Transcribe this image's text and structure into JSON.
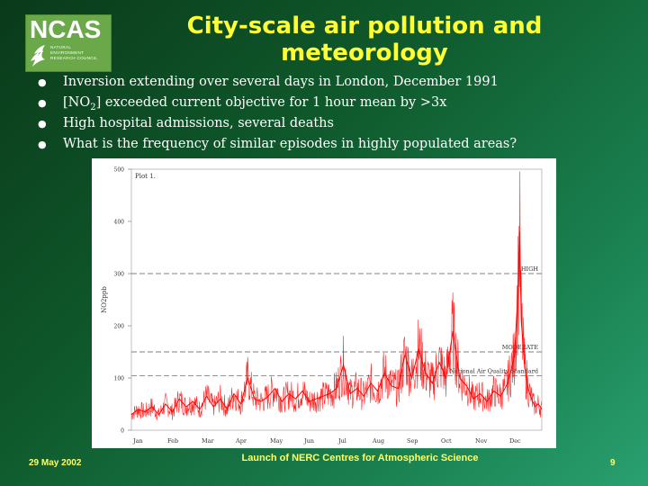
{
  "logo": {
    "wordmark": "NCAS",
    "lines": [
      "NATURAL",
      "ENVIRONMENT",
      "RESEARCH COUNCIL"
    ]
  },
  "title": {
    "line1": "City-scale air pollution and",
    "line2": "meteorology"
  },
  "bullets": [
    {
      "text": "Inversion extending over several days in London, December 1991"
    },
    {
      "pre": "[NO",
      "sub": "2",
      "post": "] exceeded current objective for 1 hour mean by >3x"
    },
    {
      "text": "High hospital admissions, several deaths"
    },
    {
      "text": "What is the frequency of similar episodes in highly populated areas?"
    }
  ],
  "colors": {
    "title": "#ffff33",
    "footer": "#ffff66",
    "series": "#ff0000",
    "reference_lines": "#555555"
  },
  "chart_data": {
    "type": "line",
    "title": "Plot 1.",
    "xlabel": "",
    "ylabel": "NO2ppb",
    "ylim": [
      0,
      500
    ],
    "yticks": [
      0,
      100,
      200,
      300,
      400,
      500
    ],
    "xticks": [
      "Jan",
      "Feb",
      "Mar",
      "Apr",
      "May",
      "Jun",
      "Jul",
      "Aug",
      "Sep",
      "Oct",
      "Nov",
      "Dec"
    ],
    "grid": false,
    "reference_lines": [
      {
        "label": "HIGH",
        "value": 300
      },
      {
        "label": "MODERATE",
        "value": 150
      },
      {
        "label": "National Air Quality Standard",
        "value": 104
      }
    ],
    "series": [
      {
        "name": "",
        "points": [
          [
            0.0,
            30
          ],
          [
            0.2,
            40
          ],
          [
            0.4,
            35
          ],
          [
            0.6,
            45
          ],
          [
            0.8,
            30
          ],
          [
            1.0,
            50
          ],
          [
            1.2,
            35
          ],
          [
            1.4,
            60
          ],
          [
            1.6,
            45
          ],
          [
            1.8,
            55
          ],
          [
            2.0,
            40
          ],
          [
            2.2,
            65
          ],
          [
            2.4,
            45
          ],
          [
            2.6,
            60
          ],
          [
            2.8,
            40
          ],
          [
            3.0,
            70
          ],
          [
            3.2,
            50
          ],
          [
            3.4,
            100
          ],
          [
            3.6,
            60
          ],
          [
            3.8,
            55
          ],
          [
            4.0,
            65
          ],
          [
            4.2,
            80
          ],
          [
            4.4,
            55
          ],
          [
            4.6,
            70
          ],
          [
            4.8,
            60
          ],
          [
            5.0,
            75
          ],
          [
            5.2,
            55
          ],
          [
            5.4,
            60
          ],
          [
            5.6,
            65
          ],
          [
            5.8,
            70
          ],
          [
            6.0,
            80
          ],
          [
            6.2,
            125
          ],
          [
            6.4,
            70
          ],
          [
            6.6,
            80
          ],
          [
            6.8,
            65
          ],
          [
            7.0,
            90
          ],
          [
            7.2,
            75
          ],
          [
            7.4,
            110
          ],
          [
            7.6,
            85
          ],
          [
            7.8,
            80
          ],
          [
            8.0,
            145
          ],
          [
            8.2,
            100
          ],
          [
            8.4,
            155
          ],
          [
            8.6,
            110
          ],
          [
            8.8,
            90
          ],
          [
            9.0,
            130
          ],
          [
            9.2,
            100
          ],
          [
            9.4,
            190
          ],
          [
            9.6,
            100
          ],
          [
            9.8,
            85
          ],
          [
            10.0,
            60
          ],
          [
            10.2,
            70
          ],
          [
            10.4,
            55
          ],
          [
            10.6,
            75
          ],
          [
            10.8,
            65
          ],
          [
            11.0,
            90
          ],
          [
            11.2,
            140
          ],
          [
            11.3,
            260
          ],
          [
            11.35,
            380
          ],
          [
            11.4,
            210
          ],
          [
            11.5,
            120
          ],
          [
            11.6,
            80
          ],
          [
            11.7,
            60
          ],
          [
            11.8,
            45
          ],
          [
            11.9,
            50
          ],
          [
            12.0,
            40
          ]
        ]
      }
    ]
  },
  "footer": {
    "date": "29 May 2002",
    "event": "Launch of NERC Centres for Atmospheric Science",
    "page": "9"
  }
}
